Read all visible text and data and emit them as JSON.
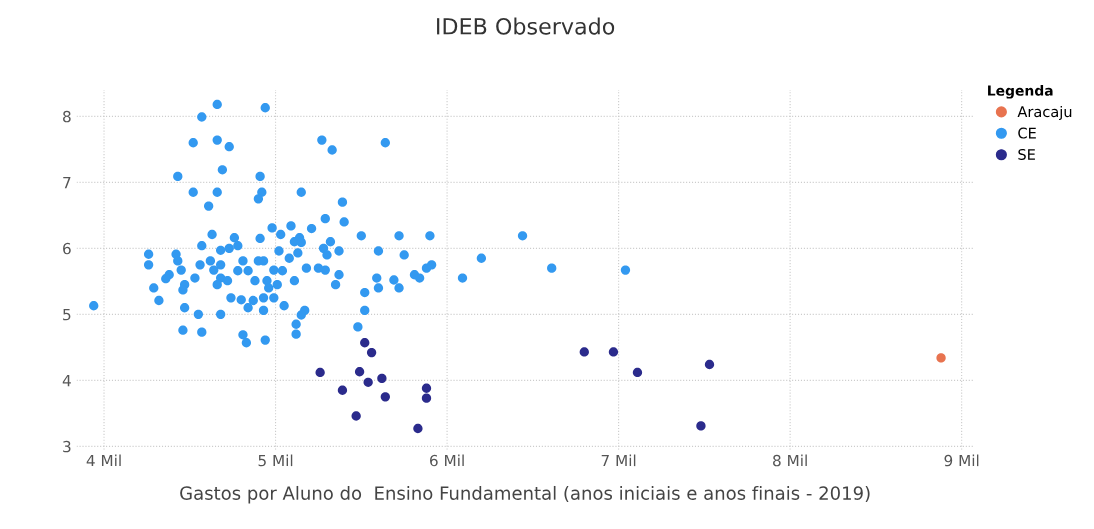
{
  "chart_data": {
    "type": "scatter",
    "title": "IDEB Observado",
    "xlabel": "Gastos por Aluno do  Ensino Fundamental (anos iniciais e anos finais - 2019)",
    "legend_title": "Legenda",
    "xlim": [
      3.84,
      9.07
    ],
    "ylim": [
      2.95,
      8.4
    ],
    "xticks": [
      {
        "value": 4,
        "label": "4 Mil"
      },
      {
        "value": 5,
        "label": "5 Mil"
      },
      {
        "value": 6,
        "label": "6 Mil"
      },
      {
        "value": 7,
        "label": "7 Mil"
      },
      {
        "value": 8,
        "label": "8 Mil"
      },
      {
        "value": 9,
        "label": "9 Mil"
      }
    ],
    "yticks": [
      3,
      4,
      5,
      6,
      7,
      8
    ],
    "grid": true,
    "legend": "top right",
    "marker": "circle",
    "series": [
      {
        "name": "Aracaju",
        "color": "#e8734f",
        "x": [
          8.88
        ],
        "values": [
          4.34
        ]
      },
      {
        "name": "CE",
        "color": "#3399f0",
        "x": [
          4.66,
          4.94,
          4.57,
          4.52,
          4.66,
          4.73,
          5.27,
          5.33,
          4.69,
          4.43,
          4.91,
          4.52,
          4.66,
          4.92,
          4.9,
          4.61,
          5.15,
          5.39,
          5.29,
          5.4,
          5.5,
          4.98,
          5.09,
          5.21,
          4.63,
          4.91,
          4.76,
          5.03,
          5.14,
          4.57,
          4.78,
          5.11,
          5.15,
          4.26,
          4.42,
          4.68,
          4.73,
          5.02,
          5.13,
          5.28,
          5.32,
          5.37,
          5.3,
          4.26,
          4.43,
          5.08,
          4.56,
          4.62,
          4.68,
          4.81,
          4.9,
          4.93,
          5.18,
          5.25,
          5.29,
          5.37,
          4.45,
          4.64,
          4.78,
          4.84,
          4.99,
          5.04,
          4.38,
          4.36,
          4.53,
          4.68,
          4.72,
          4.88,
          4.95,
          5.11,
          4.47,
          4.66,
          5.01,
          5.35,
          4.29,
          4.46,
          4.96,
          5.52,
          4.32,
          4.74,
          4.8,
          4.87,
          4.93,
          4.99,
          5.05,
          3.94,
          4.47,
          4.84,
          4.93,
          5.17,
          5.15,
          4.55,
          4.68,
          5.52,
          5.12,
          5.48,
          4.46,
          4.57,
          5.12,
          4.81,
          4.83,
          4.94,
          5.64,
          5.72,
          5.9,
          5.6,
          5.75,
          5.59,
          5.6,
          5.69,
          5.72,
          5.81,
          5.84,
          5.88,
          5.91,
          6.09,
          6.44,
          6.2,
          6.61,
          7.04
        ],
        "values": [
          8.18,
          8.13,
          7.99,
          7.6,
          7.64,
          7.54,
          7.64,
          7.49,
          7.19,
          7.09,
          7.09,
          6.85,
          6.85,
          6.85,
          6.75,
          6.64,
          6.85,
          6.7,
          6.45,
          6.4,
          6.19,
          6.31,
          6.34,
          6.3,
          6.21,
          6.15,
          6.16,
          6.21,
          6.16,
          6.04,
          6.04,
          6.1,
          6.09,
          5.91,
          5.91,
          5.97,
          6.0,
          5.96,
          5.93,
          6.0,
          6.1,
          5.96,
          5.9,
          5.75,
          5.81,
          5.85,
          5.75,
          5.81,
          5.75,
          5.81,
          5.81,
          5.81,
          5.7,
          5.7,
          5.67,
          5.6,
          5.67,
          5.67,
          5.66,
          5.66,
          5.67,
          5.66,
          5.6,
          5.54,
          5.55,
          5.55,
          5.51,
          5.51,
          5.51,
          5.51,
          5.45,
          5.45,
          5.45,
          5.45,
          5.4,
          5.37,
          5.4,
          5.33,
          5.21,
          5.25,
          5.22,
          5.21,
          5.25,
          5.25,
          5.13,
          5.13,
          5.1,
          5.1,
          5.06,
          5.06,
          4.99,
          5.0,
          5.0,
          5.06,
          4.85,
          4.81,
          4.76,
          4.73,
          4.7,
          4.69,
          4.57,
          4.61,
          7.6,
          6.19,
          6.19,
          5.96,
          5.9,
          5.55,
          5.4,
          5.52,
          5.4,
          5.6,
          5.55,
          5.7,
          5.75,
          5.55,
          6.19,
          5.85,
          5.7,
          5.67
        ]
      },
      {
        "name": "SE",
        "color": "#2b2b8c",
        "x": [
          5.52,
          5.56,
          5.26,
          5.49,
          5.54,
          5.62,
          5.39,
          5.64,
          5.88,
          5.88,
          5.47,
          5.83,
          6.8,
          6.97,
          7.11,
          7.53,
          7.48
        ],
        "values": [
          4.57,
          4.42,
          4.12,
          4.13,
          3.97,
          4.03,
          3.85,
          3.75,
          3.88,
          3.73,
          3.46,
          3.27,
          4.43,
          4.43,
          4.12,
          4.24,
          3.31
        ]
      }
    ]
  }
}
